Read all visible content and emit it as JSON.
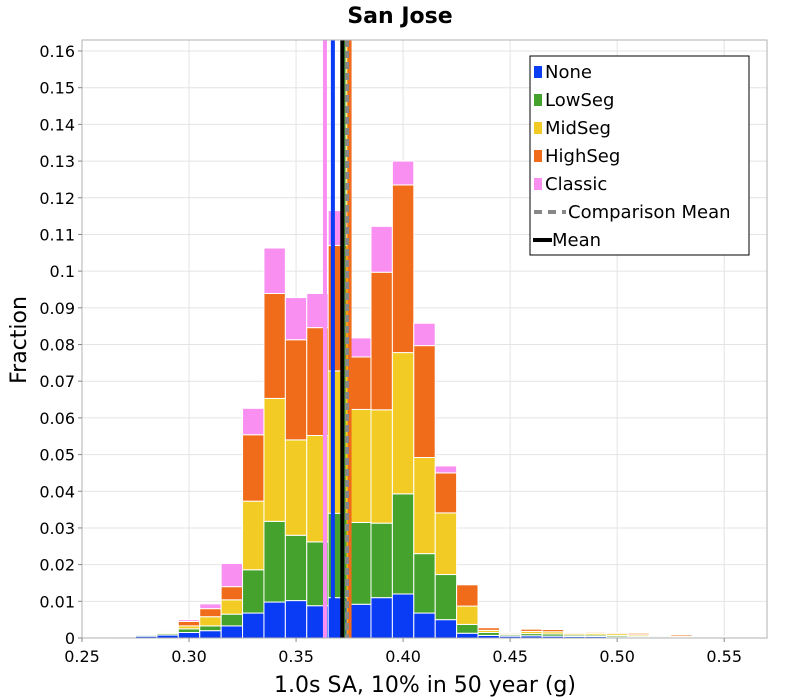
{
  "chart_data": {
    "type": "bar",
    "subtype": "stacked-histogram",
    "title": "San Jose",
    "xlabel": "1.0s SA, 10% in 50 year (g)",
    "ylabel": "Fraction",
    "xlim": [
      0.25,
      0.57
    ],
    "ylim": [
      0,
      0.163
    ],
    "xticks": [
      "0.25",
      "0.30",
      "0.35",
      "0.40",
      "0.45",
      "0.50",
      "0.55"
    ],
    "xtick_values": [
      0.25,
      0.3,
      0.35,
      0.4,
      0.45,
      0.5,
      0.55
    ],
    "yticks": [
      "0",
      "0.01",
      "0.02",
      "0.03",
      "0.04",
      "0.05",
      "0.06",
      "0.07",
      "0.08",
      "0.09",
      "0.1",
      "0.11",
      "0.12",
      "0.13",
      "0.14",
      "0.15",
      "0.16"
    ],
    "ytick_values": [
      0,
      0.01,
      0.02,
      0.03,
      0.04,
      0.05,
      0.06,
      0.07,
      0.08,
      0.09,
      0.1,
      0.11,
      0.12,
      0.13,
      0.14,
      0.15,
      0.16
    ],
    "bin_width": 0.01,
    "bin_starts": [
      0.255,
      0.265,
      0.275,
      0.285,
      0.295,
      0.305,
      0.315,
      0.325,
      0.335,
      0.345,
      0.355,
      0.365,
      0.375,
      0.385,
      0.395,
      0.405,
      0.415,
      0.425,
      0.435,
      0.445,
      0.455,
      0.465,
      0.475,
      0.485,
      0.495,
      0.505,
      0.515,
      0.525,
      0.535,
      0.545
    ],
    "series": [
      {
        "name": "None",
        "color": "#0a3cf5",
        "values": [
          0.0002,
          0.0003,
          0.0005,
          0.0008,
          0.0015,
          0.002,
          0.0033,
          0.0068,
          0.0098,
          0.0102,
          0.0088,
          0.011,
          0.0092,
          0.011,
          0.012,
          0.0068,
          0.005,
          0.0013,
          0.0007,
          0.0005,
          0.0006,
          0.0005,
          0.0004,
          0.0004,
          0.0003,
          0.0002,
          0.0003,
          0.0001,
          0.0001,
          0.0001
        ]
      },
      {
        "name": "LowSeg",
        "color": "#45a22d",
        "values": [
          0.0001,
          0.0001,
          0.0003,
          0.0004,
          0.001,
          0.0013,
          0.0032,
          0.0118,
          0.022,
          0.0178,
          0.0174,
          0.023,
          0.0223,
          0.0203,
          0.0273,
          0.0162,
          0.0123,
          0.0024,
          0.0008,
          0.0004,
          0.0006,
          0.0006,
          0.0004,
          0.0004,
          0.0004,
          0.0003,
          0.0003,
          0.0001,
          0.0001,
          0.0001
        ]
      },
      {
        "name": "MidSeg",
        "color": "#f2cb24",
        "values": [
          0.0,
          0.0001,
          0.0001,
          0.0003,
          0.0008,
          0.0025,
          0.0039,
          0.0187,
          0.0335,
          0.026,
          0.029,
          0.0388,
          0.0308,
          0.0309,
          0.0385,
          0.0262,
          0.0168,
          0.005,
          0.0006,
          0.0003,
          0.0006,
          0.0006,
          0.0004,
          0.0005,
          0.0005,
          0.0004,
          0.0002,
          0.0003,
          0.0002,
          0.0001
        ]
      },
      {
        "name": "HighSeg",
        "color": "#f06b1a",
        "values": [
          0.0,
          0.0,
          0.0001,
          0.0003,
          0.0012,
          0.0022,
          0.0036,
          0.0181,
          0.0286,
          0.0273,
          0.0294,
          0.0342,
          0.0143,
          0.0375,
          0.0457,
          0.0305,
          0.0109,
          0.0058,
          0.0007,
          0.0003,
          0.0006,
          0.0006,
          0.0003,
          0.0003,
          0.0003,
          0.0004,
          0.0001,
          0.0004,
          0.0001,
          0.0001
        ]
      },
      {
        "name": "Classic",
        "color": "#f98ff1",
        "values": [
          0.0,
          0.0,
          0.0,
          0.0002,
          0.0005,
          0.0013,
          0.0063,
          0.0072,
          0.0124,
          0.0115,
          0.0093,
          0.0095,
          0.0052,
          0.0125,
          0.0065,
          0.0061,
          0.0019,
          0.0,
          0.0,
          0.0,
          0.0,
          0.0,
          0.0,
          0.0,
          0.0,
          0.0,
          0.0,
          0.0,
          0.0,
          0.0
        ]
      }
    ],
    "vertical_lines": [
      {
        "name": "Classic mean",
        "x": 0.3635,
        "color": "#f98ff1",
        "dashed": false,
        "width": 4
      },
      {
        "name": "None mean",
        "x": 0.3672,
        "color": "#0a3cf5",
        "dashed": false,
        "width": 4
      },
      {
        "name": "LowSeg mean",
        "x": 0.3722,
        "color": "#45a22d",
        "dashed": false,
        "width": 4
      },
      {
        "name": "MidSeg mean",
        "x": 0.3745,
        "color": "#f2cb24",
        "dashed": false,
        "width": 4
      },
      {
        "name": "HighSeg mean",
        "x": 0.375,
        "color": "#f06b1a",
        "dashed": false,
        "width": 4
      },
      {
        "name": "Mean",
        "x": 0.3716,
        "color": "#000000",
        "dashed": false,
        "width": 4
      },
      {
        "name": "Comparison Mean",
        "x": 0.3738,
        "color": "#888888",
        "dashed": true,
        "width": 4
      }
    ],
    "legend": {
      "position": "top-right",
      "entries": [
        {
          "label": "None",
          "color": "#0a3cf5",
          "kind": "box"
        },
        {
          "label": "LowSeg",
          "color": "#45a22d",
          "kind": "box"
        },
        {
          "label": "MidSeg",
          "color": "#f2cb24",
          "kind": "box"
        },
        {
          "label": "HighSeg",
          "color": "#f06b1a",
          "kind": "box"
        },
        {
          "label": "Classic",
          "color": "#f98ff1",
          "kind": "box"
        },
        {
          "label": "Comparison Mean",
          "color": "#888888",
          "kind": "dash"
        },
        {
          "label": "Mean",
          "color": "#000000",
          "kind": "line"
        }
      ]
    },
    "grid": true
  }
}
